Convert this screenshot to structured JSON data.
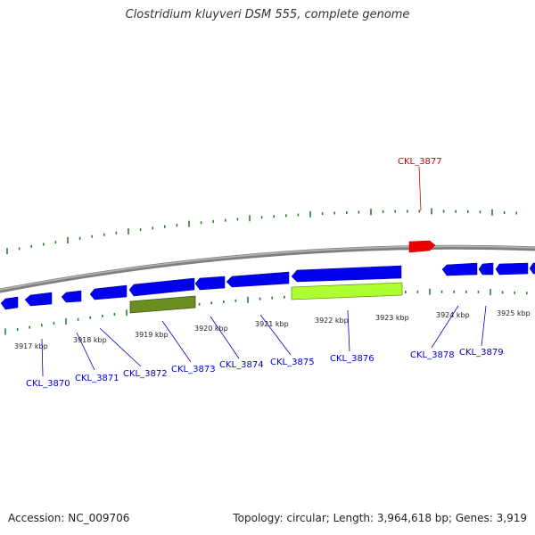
{
  "title": "Clostridium kluyveri DSM 555, complete genome",
  "footer": {
    "accession": "Accession: NC_009706",
    "topology": "Topology: circular; Length: 3,964,618 bp; Genes: 3,919"
  },
  "colors": {
    "backbone": "#8a8a8a",
    "tick": "#2e7d32",
    "forward_gene": "#ff0000",
    "reverse_gene": "#0000ee",
    "feature_dark": "#6b8e23",
    "feature_light": "#adff2f",
    "label_blue": "#0000cc",
    "label_red": "#cc0000"
  },
  "kbp_labels": [
    "3917 kbp",
    "3918 kbp",
    "3919 kbp",
    "3920 kbp",
    "3921 kbp",
    "3922 kbp",
    "3923 kbp",
    "3924 kbp",
    "3925 kbp"
  ],
  "gene_labels": [
    "CKL_3870",
    "CKL_3871",
    "CKL_3872",
    "CKL_3873",
    "CKL_3874",
    "CKL_3875",
    "CKL_3876",
    "CKL_3877",
    "CKL_3878",
    "CKL_3879"
  ]
}
